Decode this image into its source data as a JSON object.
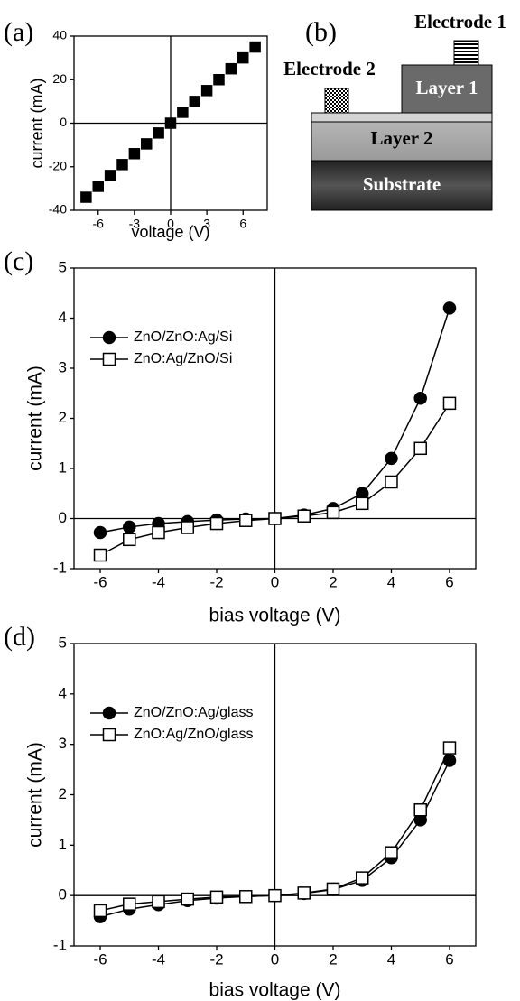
{
  "chart_data": [
    {
      "type": "scatter",
      "panel_label": "(a)",
      "x_label": "voltage (V)",
      "y_label": "current (mA)",
      "x": [
        -7,
        -6,
        -5,
        -4,
        -3,
        -2,
        -1,
        0,
        1,
        2,
        3,
        4,
        5,
        6,
        7
      ],
      "series": [
        {
          "marker": "square",
          "filled": true,
          "color": "#000000",
          "values": [
            -34,
            -29,
            -24,
            -19,
            -14,
            -9.5,
            -4.5,
            0,
            5,
            10,
            15,
            20,
            25,
            30,
            35
          ]
        }
      ],
      "xlim": [
        -8,
        8
      ],
      "xticks": [
        -6,
        -3,
        0,
        3,
        6
      ],
      "ylim": [
        -40,
        40
      ],
      "yticks": [
        -40,
        -20,
        0,
        20,
        40
      ]
    },
    {
      "type": "line",
      "panel_label": "(c)",
      "x_label": "bias voltage (V)",
      "y_label": "current (mA)",
      "x": [
        -6,
        -5,
        -4,
        -3,
        -2,
        -1,
        0,
        1,
        2,
        3,
        4,
        5,
        6
      ],
      "series": [
        {
          "name": "ZnO/ZnO:Ag/Si",
          "marker": "circle",
          "filled": true,
          "color": "#000000",
          "values": [
            -0.28,
            -0.17,
            -0.1,
            -0.06,
            -0.03,
            -0.01,
            0,
            0.07,
            0.2,
            0.5,
            1.2,
            2.4,
            4.2
          ]
        },
        {
          "name": "ZnO:Ag/ZnO/Si",
          "marker": "square",
          "filled": false,
          "color": "#000000",
          "values": [
            -0.73,
            -0.42,
            -0.28,
            -0.18,
            -0.1,
            -0.04,
            0,
            0.05,
            0.12,
            0.3,
            0.73,
            1.4,
            2.3
          ]
        }
      ],
      "xlim": [
        -6.9,
        6.9
      ],
      "xticks": [
        -6,
        -4,
        -2,
        0,
        2,
        4,
        6
      ],
      "ylim": [
        -1,
        5
      ],
      "yticks": [
        -1,
        0,
        1,
        2,
        3,
        4,
        5
      ],
      "legend": "upper left"
    },
    {
      "type": "line",
      "panel_label": "(d)",
      "x_label": "bias voltage (V)",
      "y_label": "current (mA)",
      "x": [
        -6,
        -5,
        -4,
        -3,
        -2,
        -1,
        0,
        1,
        2,
        3,
        4,
        5,
        6
      ],
      "series": [
        {
          "name": "ZnO/ZnO:Ag/glass",
          "marker": "circle",
          "filled": true,
          "color": "#000000",
          "values": [
            -0.42,
            -0.27,
            -0.18,
            -0.1,
            -0.05,
            -0.02,
            0,
            0.04,
            0.12,
            0.3,
            0.75,
            1.5,
            2.68
          ]
        },
        {
          "name": "ZnO:Ag/ZnO/glass",
          "marker": "square",
          "filled": false,
          "color": "#000000",
          "values": [
            -0.3,
            -0.17,
            -0.12,
            -0.07,
            -0.03,
            -0.02,
            0,
            0.05,
            0.13,
            0.35,
            0.85,
            1.7,
            2.93
          ]
        }
      ],
      "xlim": [
        -6.9,
        6.9
      ],
      "xticks": [
        -6,
        -4,
        -2,
        0,
        2,
        4,
        6
      ],
      "ylim": [
        -1,
        5
      ],
      "yticks": [
        -1,
        0,
        1,
        2,
        3,
        4,
        5
      ],
      "legend": "upper left"
    }
  ],
  "diagram": {
    "panel_label": "(b)",
    "electrode_1": "Electrode 1",
    "electrode_2": "Electrode 2",
    "layer_1": "Layer 1",
    "layer_2": "Layer 2",
    "substrate": "Substrate"
  }
}
